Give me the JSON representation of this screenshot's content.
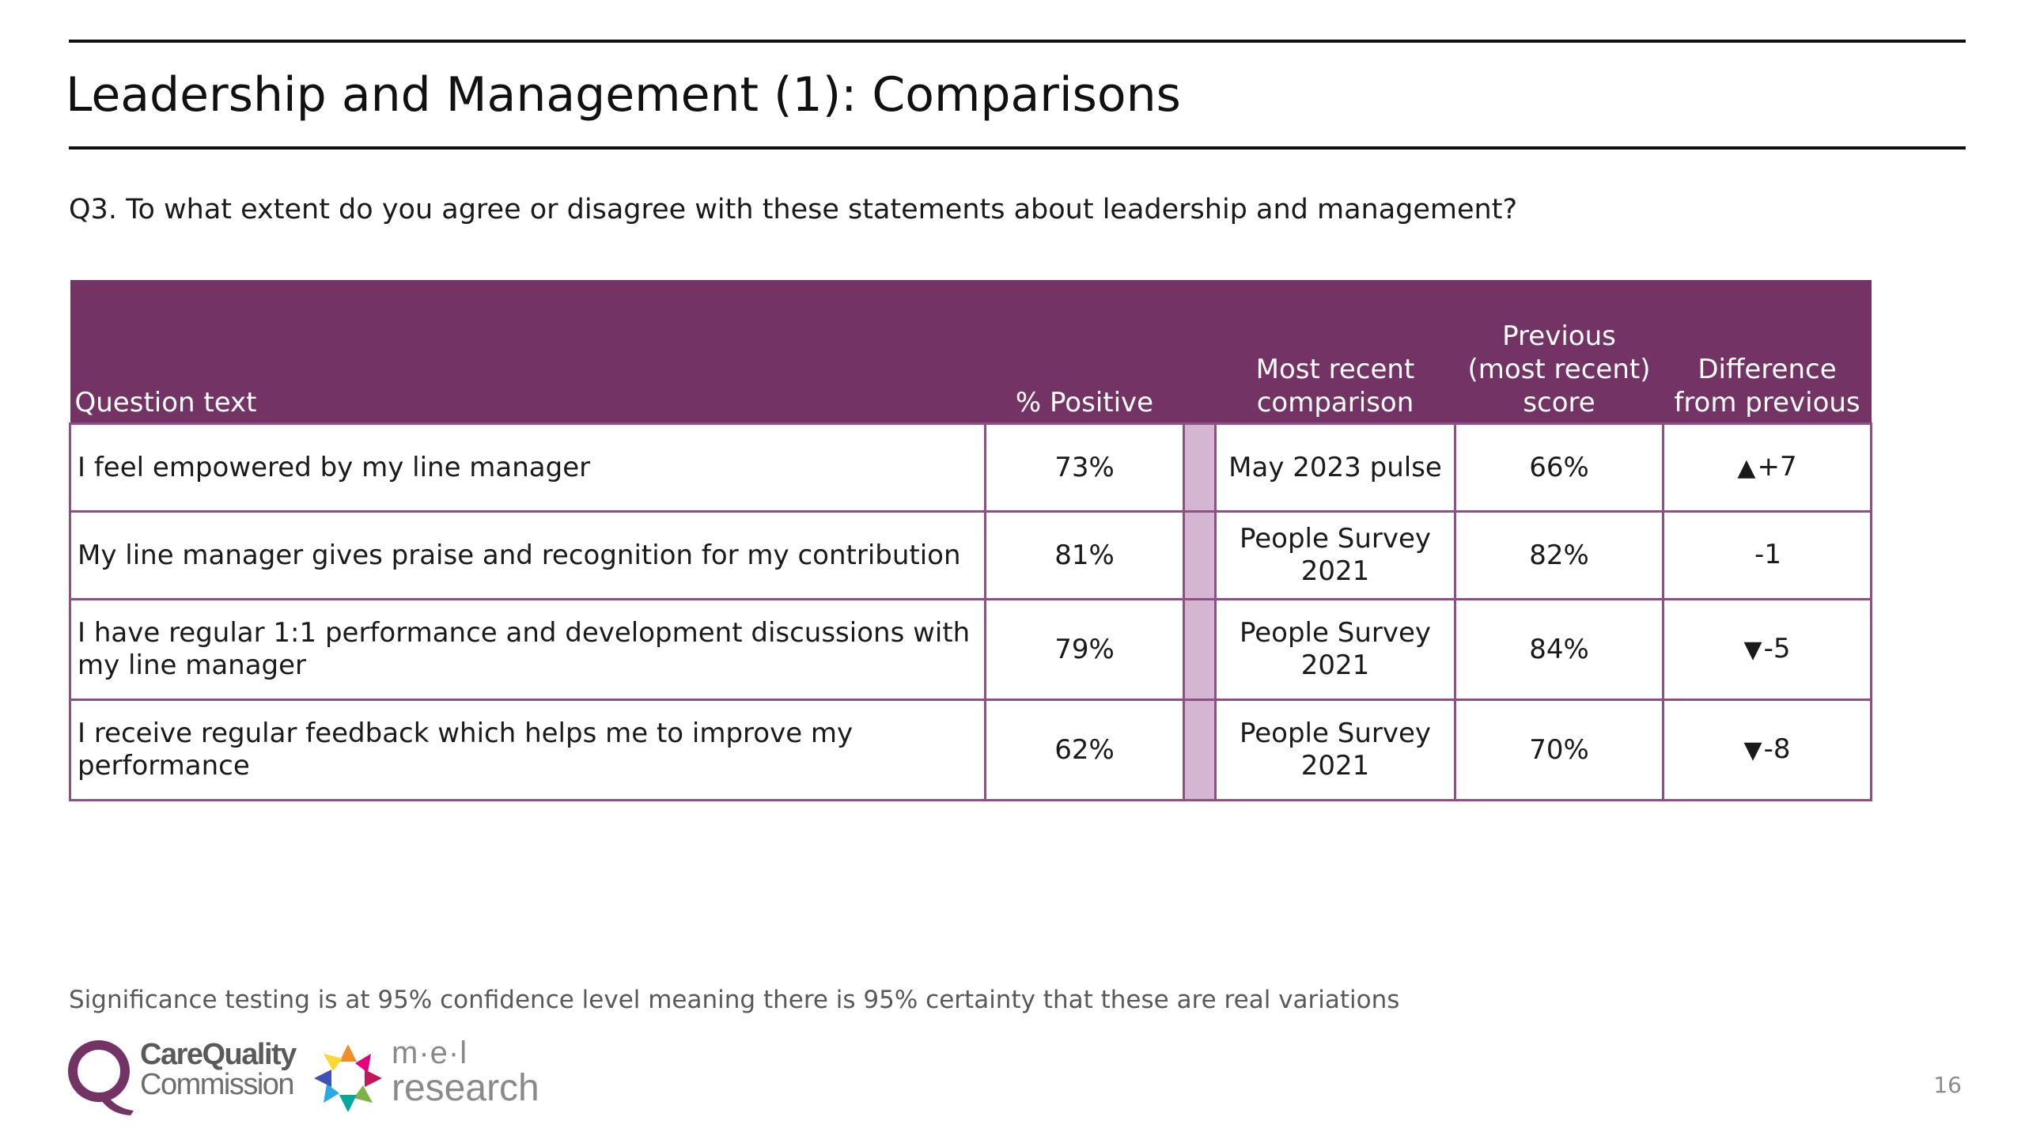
{
  "header": {
    "title": "Leadership and Management (1): Comparisons"
  },
  "question": "Q3. To what extent do you agree or disagree with these statements about leadership and management?",
  "table": {
    "headers": {
      "question_text": "Question text",
      "percent_positive": "% Positive",
      "most_recent_comparison": "Most recent comparison",
      "previous_score": "Previous (most recent) score",
      "difference": "Difference from previous"
    },
    "rows": [
      {
        "question": "I feel empowered by my line manager",
        "positive": "73%",
        "comparison": "May 2023 pulse",
        "previous": "66%",
        "arrow": "▲",
        "difference": "+7",
        "direction": "up"
      },
      {
        "question": "My line manager gives praise and recognition for my contribution",
        "positive": "81%",
        "comparison": "People Survey 2021",
        "previous": "82%",
        "arrow": "",
        "difference": "-1",
        "direction": "none"
      },
      {
        "question": "I have regular 1:1 performance and development discussions with my line manager",
        "positive": "79%",
        "comparison": "People Survey 2021",
        "previous": "84%",
        "arrow": "▼",
        "difference": "-5",
        "direction": "down"
      },
      {
        "question": "I receive regular feedback which helps me to improve my performance",
        "positive": "62%",
        "comparison": "People Survey 2021",
        "previous": "70%",
        "arrow": "▼",
        "difference": "-8",
        "direction": "down"
      }
    ]
  },
  "footnote": "Significance testing is at 95% confidence level meaning there is 95% certainty that these are real variations",
  "logos": {
    "cqc_line1": "CareQuality",
    "cqc_line2": "Commission",
    "mel_line1": "m·e·l",
    "mel_line2": "research"
  },
  "page_number": "16",
  "colors": {
    "header_purple": "#733365",
    "border_purple": "#8e4f85",
    "spacer_lilac": "#d4b6d3"
  }
}
